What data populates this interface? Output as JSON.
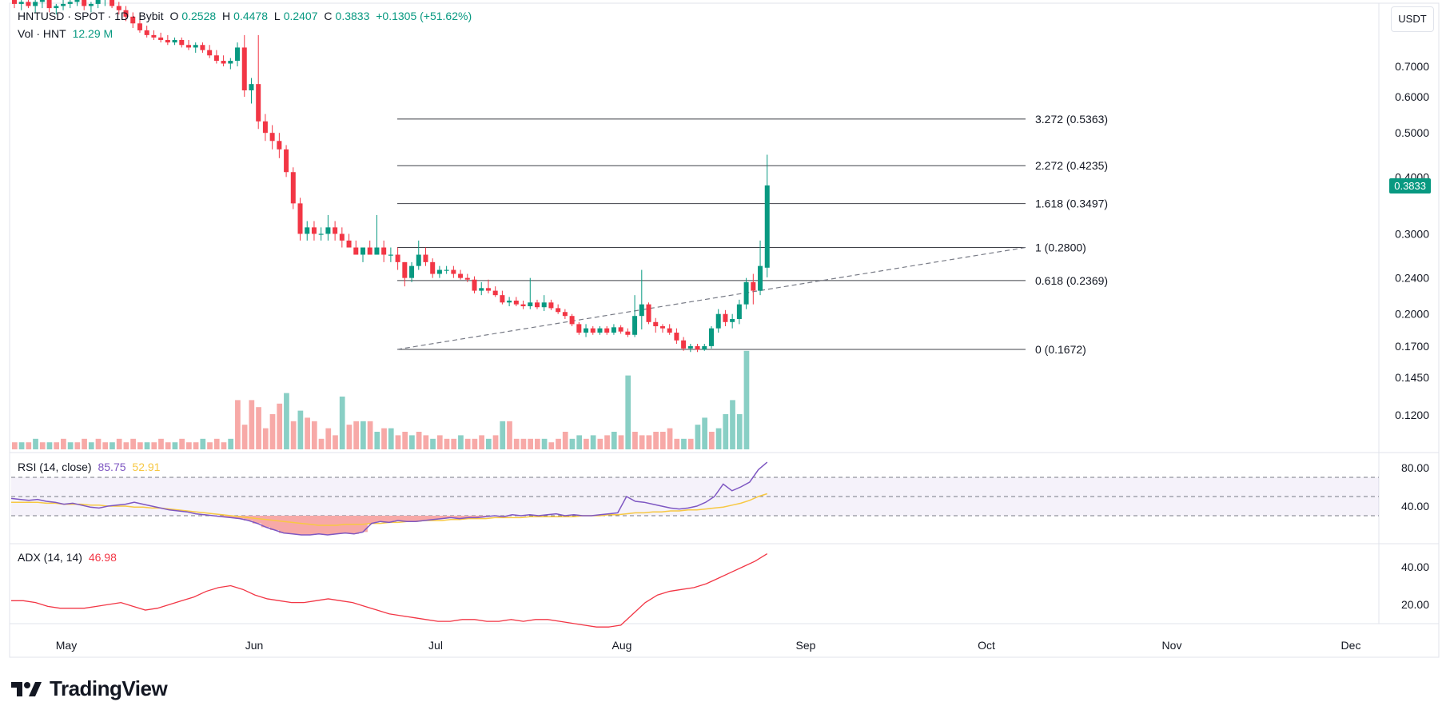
{
  "header": {
    "symbol": "HNTUSD · SPOT · 1D · Bybit",
    "o_label": "O",
    "o_value": "0.2528",
    "h_label": "H",
    "h_value": "0.4478",
    "l_label": "L",
    "l_value": "0.2407",
    "c_label": "C",
    "c_value": "0.3833",
    "change": "+0.1305 (+51.62%)",
    "vol_label": "Vol · HNT",
    "vol_value": "12.29 M"
  },
  "currency_button": "USDT",
  "current_price_tag": "0.3833",
  "brand": {
    "name": "TradingView",
    "icon": "tradingview-logo-icon"
  },
  "colors": {
    "up": "#089981",
    "down": "#f23645",
    "rsi": "#7e57c2",
    "rsi_ma": "#f7c843",
    "adx": "#f23645",
    "fib": "#787b86"
  },
  "chart_data": [
    {
      "type": "candlestick",
      "symbol": "HNTUSD",
      "log_scale": true,
      "price_axis_labels": [
        "0.7000",
        "0.6000",
        "0.5000",
        "0.4000",
        "0.3000",
        "0.2400",
        "0.2000",
        "0.1700",
        "0.1450",
        "0.1200"
      ],
      "x_tick_labels": [
        "May",
        "Jun",
        "Jul",
        "Aug",
        "Sep",
        "Oct",
        "Nov",
        "Dec"
      ],
      "ohlc": [
        [
          0.98,
          1.0,
          0.94,
          0.96
        ],
        [
          0.96,
          0.99,
          0.93,
          0.97
        ],
        [
          0.97,
          0.99,
          0.94,
          0.95
        ],
        [
          0.95,
          0.98,
          0.92,
          0.97
        ],
        [
          0.97,
          1.0,
          0.94,
          0.98
        ],
        [
          0.98,
          0.99,
          0.92,
          0.94
        ],
        [
          0.94,
          0.96,
          0.91,
          0.95
        ],
        [
          0.95,
          0.98,
          0.93,
          0.96
        ],
        [
          0.96,
          0.99,
          0.94,
          0.97
        ],
        [
          0.97,
          1.0,
          0.95,
          0.98
        ],
        [
          0.98,
          0.99,
          0.93,
          0.95
        ],
        [
          0.95,
          0.97,
          0.92,
          0.96
        ],
        [
          0.96,
          0.99,
          0.94,
          0.98
        ],
        [
          0.98,
          1.01,
          0.95,
          0.99
        ],
        [
          0.99,
          1.0,
          0.94,
          0.95
        ],
        [
          0.95,
          0.97,
          0.91,
          0.93
        ],
        [
          0.93,
          0.95,
          0.88,
          0.9
        ],
        [
          0.9,
          0.92,
          0.85,
          0.87
        ],
        [
          0.87,
          0.89,
          0.83,
          0.84
        ],
        [
          0.84,
          0.86,
          0.81,
          0.82
        ],
        [
          0.82,
          0.84,
          0.8,
          0.81
        ],
        [
          0.81,
          0.83,
          0.79,
          0.8
        ],
        [
          0.8,
          0.82,
          0.78,
          0.79
        ],
        [
          0.79,
          0.81,
          0.78,
          0.8
        ],
        [
          0.8,
          0.81,
          0.77,
          0.78
        ],
        [
          0.78,
          0.8,
          0.76,
          0.77
        ],
        [
          0.77,
          0.79,
          0.75,
          0.78
        ],
        [
          0.78,
          0.79,
          0.75,
          0.76
        ],
        [
          0.76,
          0.78,
          0.73,
          0.74
        ],
        [
          0.74,
          0.76,
          0.71,
          0.72
        ],
        [
          0.72,
          0.74,
          0.7,
          0.71
        ],
        [
          0.71,
          0.73,
          0.69,
          0.72
        ],
        [
          0.72,
          0.79,
          0.7,
          0.77
        ],
        [
          0.77,
          0.82,
          0.6,
          0.62
        ],
        [
          0.62,
          0.66,
          0.58,
          0.64
        ],
        [
          0.64,
          0.82,
          0.51,
          0.53
        ],
        [
          0.53,
          0.55,
          0.48,
          0.5
        ],
        [
          0.5,
          0.52,
          0.46,
          0.48
        ],
        [
          0.48,
          0.5,
          0.44,
          0.46
        ],
        [
          0.46,
          0.47,
          0.4,
          0.41
        ],
        [
          0.41,
          0.42,
          0.34,
          0.35
        ],
        [
          0.35,
          0.36,
          0.29,
          0.3
        ],
        [
          0.3,
          0.32,
          0.29,
          0.31
        ],
        [
          0.31,
          0.32,
          0.29,
          0.3
        ],
        [
          0.3,
          0.31,
          0.29,
          0.3
        ],
        [
          0.3,
          0.33,
          0.29,
          0.31
        ],
        [
          0.31,
          0.32,
          0.29,
          0.3
        ],
        [
          0.3,
          0.31,
          0.28,
          0.29
        ],
        [
          0.29,
          0.3,
          0.28,
          0.28
        ],
        [
          0.28,
          0.29,
          0.27,
          0.27
        ],
        [
          0.27,
          0.28,
          0.26,
          0.28
        ],
        [
          0.28,
          0.29,
          0.27,
          0.27
        ],
        [
          0.27,
          0.33,
          0.27,
          0.28
        ],
        [
          0.28,
          0.29,
          0.26,
          0.27
        ],
        [
          0.27,
          0.28,
          0.26,
          0.27
        ],
        [
          0.27,
          0.28,
          0.25,
          0.26
        ],
        [
          0.26,
          0.26,
          0.23,
          0.24
        ],
        [
          0.24,
          0.26,
          0.235,
          0.255
        ],
        [
          0.255,
          0.29,
          0.25,
          0.27
        ],
        [
          0.27,
          0.28,
          0.255,
          0.26
        ],
        [
          0.26,
          0.265,
          0.24,
          0.245
        ],
        [
          0.245,
          0.255,
          0.24,
          0.25
        ],
        [
          0.25,
          0.255,
          0.245,
          0.25
        ],
        [
          0.25,
          0.255,
          0.24,
          0.245
        ],
        [
          0.245,
          0.25,
          0.238,
          0.24
        ],
        [
          0.24,
          0.245,
          0.235,
          0.238
        ],
        [
          0.238,
          0.242,
          0.222,
          0.225
        ],
        [
          0.225,
          0.235,
          0.22,
          0.228
        ],
        [
          0.228,
          0.238,
          0.222,
          0.225
        ],
        [
          0.225,
          0.23,
          0.218,
          0.22
        ],
        [
          0.22,
          0.225,
          0.21,
          0.212
        ],
        [
          0.212,
          0.218,
          0.208,
          0.214
        ],
        [
          0.214,
          0.218,
          0.208,
          0.21
        ],
        [
          0.21,
          0.214,
          0.205,
          0.208
        ],
        [
          0.208,
          0.24,
          0.205,
          0.212
        ],
        [
          0.212,
          0.215,
          0.205,
          0.207
        ],
        [
          0.207,
          0.22,
          0.203,
          0.212
        ],
        [
          0.212,
          0.215,
          0.204,
          0.206
        ],
        [
          0.206,
          0.21,
          0.2,
          0.202
        ],
        [
          0.202,
          0.205,
          0.195,
          0.198
        ],
        [
          0.198,
          0.2,
          0.188,
          0.19
        ],
        [
          0.19,
          0.192,
          0.18,
          0.182
        ],
        [
          0.182,
          0.19,
          0.178,
          0.186
        ],
        [
          0.186,
          0.188,
          0.18,
          0.182
        ],
        [
          0.182,
          0.188,
          0.18,
          0.186
        ],
        [
          0.186,
          0.188,
          0.18,
          0.182
        ],
        [
          0.182,
          0.19,
          0.18,
          0.187
        ],
        [
          0.187,
          0.189,
          0.181,
          0.183
        ],
        [
          0.183,
          0.186,
          0.178,
          0.18
        ],
        [
          0.18,
          0.22,
          0.178,
          0.198
        ],
        [
          0.198,
          0.25,
          0.185,
          0.21
        ],
        [
          0.21,
          0.212,
          0.19,
          0.192
        ],
        [
          0.192,
          0.196,
          0.182,
          0.188
        ],
        [
          0.188,
          0.19,
          0.182,
          0.186
        ],
        [
          0.186,
          0.19,
          0.18,
          0.182
        ],
        [
          0.182,
          0.186,
          0.172,
          0.175
        ],
        [
          0.175,
          0.178,
          0.166,
          0.168
        ],
        [
          0.168,
          0.172,
          0.165,
          0.17
        ],
        [
          0.17,
          0.172,
          0.165,
          0.167
        ],
        [
          0.167,
          0.172,
          0.166,
          0.17
        ],
        [
          0.17,
          0.188,
          0.168,
          0.186
        ],
        [
          0.186,
          0.205,
          0.182,
          0.2
        ],
        [
          0.2,
          0.204,
          0.188,
          0.192
        ],
        [
          0.192,
          0.2,
          0.186,
          0.195
        ],
        [
          0.195,
          0.215,
          0.19,
          0.21
        ],
        [
          0.21,
          0.24,
          0.205,
          0.235
        ],
        [
          0.235,
          0.245,
          0.21,
          0.225
        ],
        [
          0.225,
          0.29,
          0.22,
          0.255
        ],
        [
          0.2528,
          0.4478,
          0.2407,
          0.3833
        ]
      ],
      "volume": [
        [
          2,
          0
        ],
        [
          2,
          1
        ],
        [
          2,
          0
        ],
        [
          3,
          1
        ],
        [
          2,
          0
        ],
        [
          2,
          1
        ],
        [
          2,
          0
        ],
        [
          3,
          0
        ],
        [
          2,
          1
        ],
        [
          2,
          0
        ],
        [
          3,
          0
        ],
        [
          2,
          1
        ],
        [
          3,
          0
        ],
        [
          2,
          0
        ],
        [
          2,
          1
        ],
        [
          3,
          0
        ],
        [
          2,
          0
        ],
        [
          3,
          0
        ],
        [
          2,
          0
        ],
        [
          2,
          1
        ],
        [
          2,
          0
        ],
        [
          3,
          0
        ],
        [
          2,
          0
        ],
        [
          2,
          1
        ],
        [
          3,
          0
        ],
        [
          2,
          0
        ],
        [
          2,
          0
        ],
        [
          3,
          1
        ],
        [
          2,
          0
        ],
        [
          3,
          0
        ],
        [
          2,
          0
        ],
        [
          3,
          1
        ],
        [
          14,
          0
        ],
        [
          7,
          0
        ],
        [
          14,
          0
        ],
        [
          12,
          0
        ],
        [
          6,
          0
        ],
        [
          10,
          0
        ],
        [
          13,
          0
        ],
        [
          16,
          1
        ],
        [
          8,
          0
        ],
        [
          11,
          1
        ],
        [
          9,
          0
        ],
        [
          8,
          0
        ],
        [
          3,
          0
        ],
        [
          6,
          0
        ],
        [
          4,
          0
        ],
        [
          15,
          1
        ],
        [
          7,
          0
        ],
        [
          8,
          0
        ],
        [
          8,
          1
        ],
        [
          8,
          0
        ],
        [
          5,
          1
        ],
        [
          6,
          0
        ],
        [
          6,
          1
        ],
        [
          4,
          0
        ],
        [
          5,
          0
        ],
        [
          4,
          1
        ],
        [
          5,
          0
        ],
        [
          4,
          0
        ],
        [
          3,
          1
        ],
        [
          4,
          0
        ],
        [
          3,
          0
        ],
        [
          3,
          0
        ],
        [
          4,
          1
        ],
        [
          3,
          0
        ],
        [
          3,
          0
        ],
        [
          4,
          0
        ],
        [
          3,
          1
        ],
        [
          4,
          0
        ],
        [
          8,
          1
        ],
        [
          8,
          0
        ],
        [
          3,
          0
        ],
        [
          3,
          0
        ],
        [
          3,
          0
        ],
        [
          3,
          0
        ],
        [
          3,
          1
        ],
        [
          2,
          0
        ],
        [
          3,
          0
        ],
        [
          5,
          0
        ],
        [
          3,
          1
        ],
        [
          4,
          1
        ],
        [
          3,
          0
        ],
        [
          4,
          1
        ],
        [
          3,
          0
        ],
        [
          4,
          0
        ],
        [
          5,
          1
        ],
        [
          4,
          0
        ],
        [
          21,
          1
        ],
        [
          5,
          0
        ],
        [
          4,
          0
        ],
        [
          4,
          0
        ],
        [
          5,
          0
        ],
        [
          5,
          0
        ],
        [
          6,
          0
        ],
        [
          3,
          0
        ],
        [
          3,
          1
        ],
        [
          3,
          0
        ],
        [
          7,
          1
        ],
        [
          9,
          1
        ],
        [
          5,
          0
        ],
        [
          6,
          1
        ],
        [
          10,
          1
        ],
        [
          14,
          1
        ],
        [
          10,
          1
        ],
        [
          28,
          1
        ]
      ],
      "fibonacci": [
        {
          "ratio": "3.272",
          "price": 0.5363,
          "label": "3.272 (0.5363)"
        },
        {
          "ratio": "2.272",
          "price": 0.4235,
          "label": "2.272 (0.4235)"
        },
        {
          "ratio": "1.618",
          "price": 0.3497,
          "label": "1.618 (0.3497)"
        },
        {
          "ratio": "1",
          "price": 0.28,
          "label": "1 (0.2800)"
        },
        {
          "ratio": "0.618",
          "price": 0.2369,
          "label": "0.618 (0.2369)"
        },
        {
          "ratio": "0",
          "price": 0.1672,
          "label": "0 (0.1672)"
        }
      ],
      "trendline": {
        "from_price": 0.1672,
        "to_price": 0.28
      }
    },
    {
      "type": "line",
      "name": "RSI (14, close)",
      "value_label": "85.75",
      "ma_label": "52.91",
      "y_axis_labels": [
        "80.00",
        "40.00"
      ],
      "bands": [
        70,
        50,
        30
      ],
      "rsi": [
        48,
        47,
        46,
        47,
        45,
        44,
        42,
        43,
        41,
        39,
        38,
        40,
        41,
        42,
        44,
        42,
        40,
        38,
        36,
        35,
        34,
        32,
        31,
        30,
        29,
        28,
        27,
        25,
        22,
        18,
        15,
        12,
        11,
        10,
        10,
        11,
        10,
        11,
        12,
        11,
        13,
        22,
        24,
        23,
        25,
        24,
        24,
        25,
        26,
        27,
        28,
        27,
        28,
        28,
        29,
        30,
        29,
        31,
        30,
        31,
        30,
        31,
        32,
        30,
        31,
        30,
        30,
        31,
        32,
        33,
        50,
        45,
        44,
        42,
        40,
        38,
        37,
        38,
        40,
        44,
        50,
        63,
        56,
        60,
        65,
        78,
        85.75
      ],
      "rsi_ma": [
        44,
        44,
        44,
        44,
        43,
        43,
        42,
        42,
        42,
        41,
        41,
        40,
        40,
        40,
        39,
        39,
        38,
        38,
        37,
        36,
        35,
        34,
        33,
        32,
        31,
        30,
        29,
        28,
        27,
        26,
        25,
        24,
        23,
        22,
        21,
        20,
        20,
        20,
        21,
        21,
        21,
        22,
        22,
        23,
        23,
        24,
        24,
        25,
        25,
        25,
        26,
        26,
        27,
        27,
        27,
        28,
        28,
        28,
        28,
        29,
        29,
        29,
        29,
        29,
        29,
        30,
        30,
        30,
        31,
        31,
        32,
        33,
        33,
        34,
        34,
        35,
        35,
        36,
        36,
        37,
        38,
        39,
        41,
        43,
        46,
        50,
        52.91
      ]
    },
    {
      "type": "line",
      "name": "ADX (14, 14)",
      "value_label": "46.98",
      "y_axis_labels": [
        "40.00",
        "20.00"
      ],
      "adx": [
        22,
        22,
        21,
        19,
        18,
        18,
        18,
        19,
        20,
        21,
        19,
        17,
        18,
        20,
        22,
        24,
        27,
        29,
        30,
        28,
        25,
        23,
        22,
        21,
        21,
        22,
        23,
        22,
        21,
        19,
        17,
        15,
        14,
        13,
        12,
        11,
        11,
        12,
        12,
        11,
        11,
        12,
        11,
        12,
        12,
        11,
        10,
        9,
        8,
        8,
        9,
        15,
        21,
        25,
        27,
        28,
        29,
        31,
        34,
        37,
        40,
        43,
        46.98
      ]
    }
  ]
}
